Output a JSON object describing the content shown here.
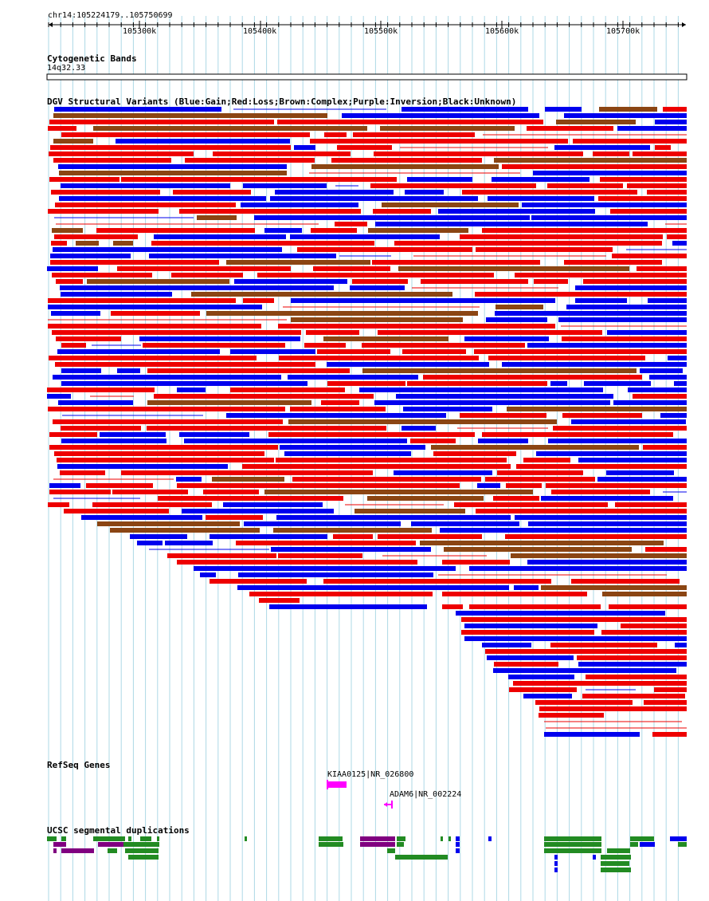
{
  "ruler": {
    "region": "chr14:105224179..105750699",
    "ticks": [
      "105300k",
      "105400k",
      "105500k",
      "105600k",
      "105700k"
    ]
  },
  "tracks": {
    "cyto_title": "Cytogenetic Bands",
    "cyto_band": "14q32.33",
    "dgv_title": "DGV Structural Variants (Blue:Gain;Red:Loss;Brown:Complex;Purple:Inversion;Black:Unknown)",
    "refseq_title": "RefSeq Genes",
    "seg_title": "UCSC segmental duplications"
  },
  "genes": [
    {
      "label": "KIAA0125|NR_026800"
    },
    {
      "label": "ADAM6|NR_002224"
    }
  ],
  "colors": {
    "gain": "#0000ee",
    "loss": "#ee0000",
    "complex": "#8b4513",
    "inversion": "#800080",
    "gene": "#ff00ff",
    "segdup_green": "#228b22",
    "segdup_purple": "#800080",
    "segdup_blue": "#0000ee",
    "grid": "#add8e6"
  }
}
